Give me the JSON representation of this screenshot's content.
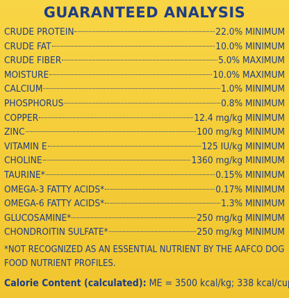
{
  "title": "GUARANTEED ANALYSIS",
  "rows": [
    {
      "name": "CRUDE PROTEIN",
      "value": "22.0% MINIMUM"
    },
    {
      "name": "CRUDE FAT",
      "value": "10.0% MINIMUM"
    },
    {
      "name": "CRUDE FIBER",
      "value": "5.0% MAXIMUM"
    },
    {
      "name": "MOISTURE",
      "value": "10.0% MAXIMUM"
    },
    {
      "name": "CALCIUM",
      "value": "1.0% MINIMUM"
    },
    {
      "name": "PHOSPHORUS",
      "value": "0.8% MINIMUM"
    },
    {
      "name": "COPPER",
      "value": "12.4 mg/kg MINIMUM"
    },
    {
      "name": "ZINC",
      "value": "100 mg/kg MINIMUM"
    },
    {
      "name": "VITAMIN E",
      "value": "125 IU/kg MINIMUM"
    },
    {
      "name": "CHOLINE",
      "value": "1360 mg/kg MINIMUM"
    },
    {
      "name": "TAURINE*",
      "value": "0.15% MINIMUM"
    },
    {
      "name": "OMEGA-3 FATTY ACIDS*",
      "value": "0.17% MINIMUM"
    },
    {
      "name": "OMEGA-6 FATTY ACIDS*",
      "value": "1.3% MINIMUM"
    },
    {
      "name": "GLUCOSAMINE*",
      "value": "250 mg/kg MINIMUM"
    },
    {
      "name": "CHONDROITIN SULFATE*",
      "value": "250 mg/kg MINIMUM"
    }
  ],
  "footnote": "*NOT RECOGNIZED AS AN ESSENTIAL NUTRIENT BY THE AAFCO DOG FOOD NUTRIENT PROFILES.",
  "calorie": {
    "label": "Calorie Content (calculated):",
    "value": "ME = 3500 kcal/kg; 338 kcal/cup"
  },
  "colors": {
    "text": "#1f3d86",
    "background": "#f5cf3c"
  }
}
